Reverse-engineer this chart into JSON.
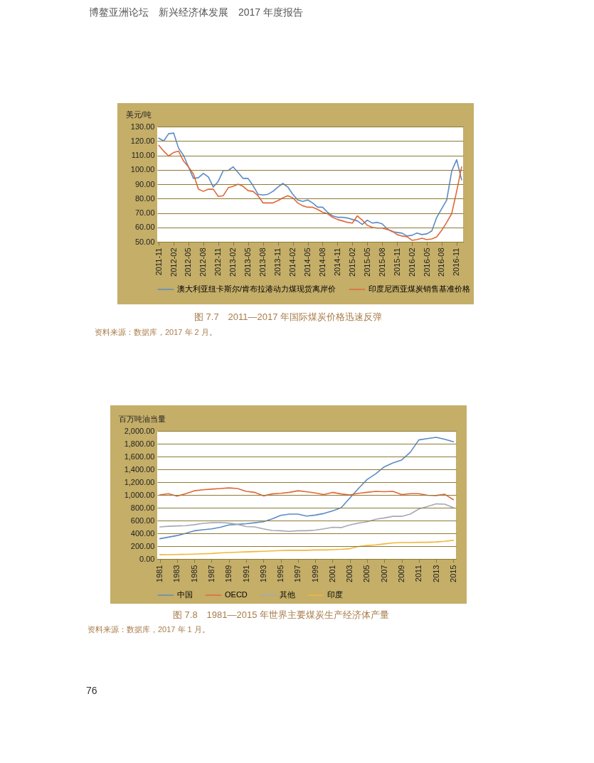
{
  "chart_data": [
    {
      "type": "line",
      "title": "图 7.7　2011—2017 年国际煤炭价格迅速反弹",
      "ylabel": "美元/吨",
      "annotations": [
        "资料来源：数据库，2017 年 2 月。",
        "博鳌亚洲论坛　新兴经济体发展　2017 年度报告"
      ],
      "categories": [
        "2011-11",
        null,
        null,
        "2012-02",
        null,
        null,
        "2012-05",
        null,
        null,
        "2012-08",
        null,
        null,
        "2012-11",
        null,
        null,
        "2013-02",
        null,
        null,
        "2013-05",
        null,
        null,
        "2013-08",
        null,
        null,
        "2013-11",
        null,
        null,
        "2014-02",
        null,
        null,
        "2014-05",
        null,
        null,
        "2014-08",
        null,
        null,
        "2014-11",
        null,
        null,
        "2015-02",
        null,
        null,
        "2015-05",
        null,
        null,
        "2015-08",
        null,
        null,
        "2015-11",
        null,
        null,
        "2016-02",
        null,
        null,
        "2016-05",
        null,
        null,
        "2016-08",
        null,
        null,
        "2016-11",
        null
      ],
      "series": [
        {
          "name": "澳大利亚纽卡斯尔/肯布拉港动力煤现货离岸价",
          "color": "#5b8bc4",
          "values": [
            122,
            120,
            125,
            125.5,
            115,
            110,
            102,
            94,
            94.5,
            97.5,
            95,
            88,
            92,
            99.5,
            99.5,
            102,
            98,
            94,
            94,
            89,
            83,
            82.5,
            83,
            85,
            88,
            90.5,
            88,
            83,
            79,
            78,
            79,
            77,
            74,
            74,
            70.5,
            68,
            67,
            67,
            66.5,
            65.5,
            64.5,
            62,
            65,
            63,
            63.5,
            62.5,
            59,
            57,
            56.5,
            56,
            54,
            54.5,
            56,
            55,
            55.5,
            57.5,
            67,
            73,
            79,
            99,
            107,
            93
          ]
        },
        {
          "name": "印度尼西亚煤炭销售基准价格",
          "color": "#e0683a",
          "values": [
            117,
            113,
            109.5,
            112,
            113,
            106,
            102,
            97,
            86.5,
            85,
            86.5,
            86.5,
            81.5,
            82,
            87.5,
            88.5,
            90,
            88.5,
            85.5,
            85,
            82,
            77,
            77,
            77,
            78.5,
            80.5,
            82,
            80.5,
            77,
            75,
            74,
            74,
            72.5,
            70.5,
            69.5,
            67,
            65.5,
            64.5,
            63.5,
            63,
            68,
            65,
            61.5,
            60,
            59.5,
            59.5,
            58.5,
            57.5,
            55,
            54,
            53.5,
            51,
            51.5,
            52.5,
            51.5,
            52,
            53.5,
            58,
            63.5,
            69.5,
            85,
            102
          ]
        }
      ],
      "ylim": [
        50,
        130
      ],
      "yticks": [
        {
          "value": 50,
          "label": "50.00"
        },
        {
          "value": 60,
          "label": "60.00"
        },
        {
          "value": 70,
          "label": "70.00"
        },
        {
          "value": 80,
          "label": "80.00"
        },
        {
          "value": 90,
          "label": "90.00"
        },
        {
          "value": 100,
          "label": "100.00"
        },
        {
          "value": 110,
          "label": "110.00"
        },
        {
          "value": 120,
          "label": "120.00"
        },
        {
          "value": 130,
          "label": "130.00"
        }
      ],
      "grid": "y",
      "legend": "bottom"
    },
    {
      "type": "line",
      "title": "图 7.8　1981—2015 年世界主要煤炭生产经济体产量",
      "ylabel": "百万吨油当量",
      "annotations": [
        "资料来源：数据库，2017 年 1 月。",
        "76"
      ],
      "categories": [
        "1981",
        null,
        "1983",
        null,
        "1985",
        null,
        "1987",
        null,
        "1989",
        null,
        "1991",
        null,
        "1993",
        null,
        "1995",
        null,
        "1997",
        null,
        "1999",
        null,
        "2001",
        null,
        "2003",
        null,
        "2005",
        null,
        "2007",
        null,
        "2009",
        null,
        "2011",
        null,
        "2013",
        null,
        "2015"
      ],
      "series": [
        {
          "name": "中国",
          "color": "#5b8bc4",
          "values": [
            315,
            340,
            365,
            400,
            440,
            455,
            470,
            495,
            530,
            540,
            550,
            565,
            580,
            625,
            680,
            700,
            700,
            670,
            685,
            710,
            750,
            800,
            950,
            1100,
            1240,
            1330,
            1440,
            1500,
            1545,
            1665,
            1860,
            1880,
            1900,
            1870,
            1830
          ]
        },
        {
          "name": "OECD",
          "color": "#e0683a",
          "values": [
            1000,
            1020,
            980,
            1020,
            1065,
            1080,
            1090,
            1100,
            1110,
            1100,
            1055,
            1040,
            985,
            1015,
            1025,
            1040,
            1065,
            1050,
            1030,
            1005,
            1040,
            1015,
            1000,
            1025,
            1040,
            1055,
            1050,
            1055,
            1005,
            1020,
            1020,
            995,
            990,
            1010,
            925
          ]
        },
        {
          "name": "其他",
          "color": "#a8a8b4",
          "values": [
            500,
            510,
            515,
            520,
            535,
            555,
            565,
            570,
            560,
            540,
            505,
            500,
            470,
            445,
            440,
            430,
            440,
            440,
            450,
            470,
            495,
            490,
            530,
            560,
            580,
            620,
            640,
            665,
            665,
            700,
            780,
            820,
            860,
            855,
            800
          ]
        },
        {
          "name": "印度",
          "color": "#f0b73a",
          "values": [
            65,
            67,
            70,
            72,
            75,
            80,
            85,
            95,
            100,
            105,
            110,
            115,
            120,
            125,
            130,
            135,
            135,
            135,
            140,
            140,
            145,
            150,
            160,
            195,
            210,
            220,
            235,
            250,
            255,
            255,
            260,
            260,
            265,
            275,
            290
          ]
        }
      ],
      "ylim": [
        0,
        2000
      ],
      "yticks": [
        {
          "value": 0,
          "label": "0.00"
        },
        {
          "value": 200,
          "label": "200.00"
        },
        {
          "value": 400,
          "label": "400.00"
        },
        {
          "value": 600,
          "label": "600.00"
        },
        {
          "value": 800,
          "label": "800.00"
        },
        {
          "value": 1000,
          "label": "1,000.00"
        },
        {
          "value": 1200,
          "label": "1,200.00"
        },
        {
          "value": 1400,
          "label": "1,400.00"
        },
        {
          "value": 1600,
          "label": "1,600.00"
        },
        {
          "value": 1800,
          "label": "1,800.00"
        },
        {
          "value": 2000,
          "label": "2,000.00"
        }
      ],
      "grid": "y",
      "legend": "bottom"
    }
  ]
}
